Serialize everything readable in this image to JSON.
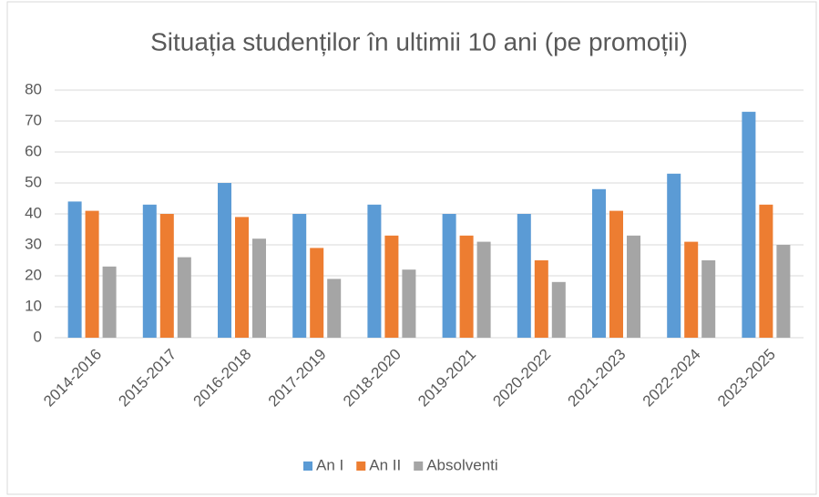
{
  "chart_data": {
    "type": "bar",
    "title": "Situația studenților în ultimii 10 ani (pe promoții)",
    "categories": [
      "2014-2016",
      "2015-2017",
      "2016-2018",
      "2017-2019",
      "2018-2020",
      "2019-2021",
      "2020-2022",
      "2021-2023",
      "2022-2024",
      "2023-2025"
    ],
    "series": [
      {
        "name": "An I",
        "color": "#5b9bd5",
        "values": [
          44,
          43,
          50,
          40,
          43,
          40,
          40,
          48,
          53,
          73
        ]
      },
      {
        "name": "An II",
        "color": "#ed7d31",
        "values": [
          41,
          40,
          39,
          29,
          33,
          33,
          25,
          41,
          31,
          43
        ]
      },
      {
        "name": "Absolventi",
        "color": "#a5a5a5",
        "values": [
          23,
          26,
          32,
          19,
          22,
          31,
          18,
          33,
          25,
          30
        ]
      }
    ],
    "ylim": [
      0,
      80
    ],
    "yticks": [
      0,
      10,
      20,
      30,
      40,
      50,
      60,
      70,
      80
    ],
    "grid": true,
    "legend": "bottom"
  }
}
